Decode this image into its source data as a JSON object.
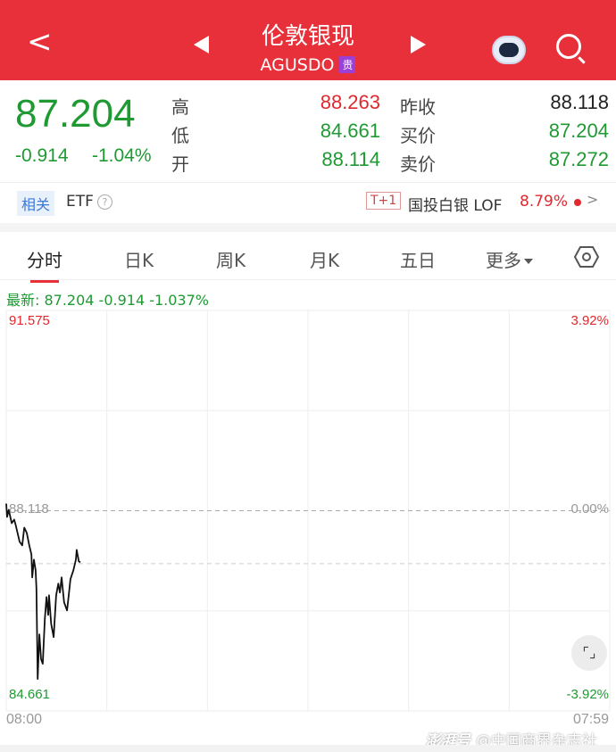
{
  "header": {
    "title": "伦敦银现",
    "code": "AGUSDO",
    "badge": "贵",
    "icons": [
      "back-icon",
      "prev-icon",
      "next-icon",
      "robot-assistant-icon",
      "search-icon"
    ]
  },
  "quote": {
    "price": "87.204",
    "change": "-0.914",
    "change_pct": "-1.04%",
    "fields": [
      {
        "label": "高",
        "value": "88.263",
        "color": "#e0282e"
      },
      {
        "label": "低",
        "value": "84.661",
        "color": "#1f9a33"
      },
      {
        "label": "开",
        "value": "88.114",
        "color": "#1f9a33"
      },
      {
        "label": "昨收",
        "value": "88.118",
        "color": "#222222"
      },
      {
        "label": "买价",
        "value": "87.204",
        "color": "#1f9a33"
      },
      {
        "label": "卖价",
        "value": "87.272",
        "color": "#1f9a33"
      }
    ]
  },
  "related": {
    "tag": "相关",
    "label": "ETF",
    "help": "?",
    "t1": "T+1",
    "fund": "国投白银 LOF",
    "fund_pct": "8.79%"
  },
  "tabs": [
    "分时",
    "日K",
    "周K",
    "月K",
    "五日",
    "更多"
  ],
  "latest": "最新: 87.204  -0.914  -1.037%",
  "chart_data": {
    "type": "line",
    "y_top": "91.575",
    "y_mid": "88.118",
    "y_bottom": "84.661",
    "pct_top": "3.92%",
    "pct_mid": "0.00%",
    "pct_bottom": "-3.92%",
    "x_start": "08:00",
    "x_end": "07:59",
    "ylim": [
      84.661,
      91.575
    ],
    "reference_price": 88.118,
    "current_price": 87.204,
    "grid": true,
    "line_color": "#111111",
    "points": [
      [
        "08:00",
        88.241
      ],
      [
        "08:02",
        88.01
      ],
      [
        "08:06",
        88.133
      ],
      [
        "08:13",
        87.903
      ],
      [
        "08:19",
        87.964
      ],
      [
        "08:23",
        87.857
      ],
      [
        "08:32",
        87.58
      ],
      [
        "08:38",
        87.519
      ],
      [
        "08:43",
        87.826
      ],
      [
        "08:49",
        87.734
      ],
      [
        "08:55",
        87.519
      ],
      [
        "09:00",
        87.365
      ],
      [
        "09:02",
        86.966
      ],
      [
        "09:06",
        87.273
      ],
      [
        "09:10",
        87.089
      ],
      [
        "09:12",
        86.781
      ],
      [
        "09:15",
        85.214
      ],
      [
        "09:19",
        85.982
      ],
      [
        "09:23",
        85.552
      ],
      [
        "09:27",
        85.475
      ],
      [
        "09:32",
        86.244
      ],
      [
        "09:36",
        86.628
      ],
      [
        "09:40",
        86.32
      ],
      [
        "09:42",
        86.658
      ],
      [
        "09:47",
        86.167
      ],
      [
        "09:53",
        85.936
      ],
      [
        "09:59",
        86.658
      ],
      [
        "10:04",
        86.858
      ],
      [
        "10:08",
        86.704
      ],
      [
        "10:12",
        86.966
      ],
      [
        "10:18",
        86.536
      ],
      [
        "10:25",
        86.397
      ],
      [
        "10:29",
        86.658
      ],
      [
        "10:33",
        86.935
      ],
      [
        "10:40",
        87.089
      ],
      [
        "10:46",
        87.273
      ],
      [
        "10:48",
        87.442
      ],
      [
        "10:53",
        87.242
      ],
      [
        "10:57",
        87.227
      ]
    ]
  },
  "watermark": {
    "brand": "澎湃号",
    "text": "@中国商界杂志社"
  }
}
